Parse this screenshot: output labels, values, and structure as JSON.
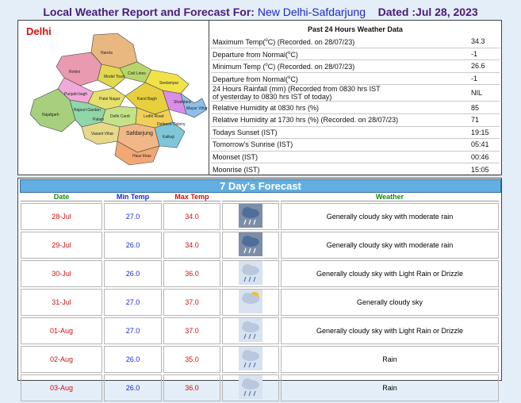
{
  "header": {
    "title_prefix": "Local Weather Report and Forecast For:",
    "station": "New Delhi-Safdarjung",
    "dated": "Dated :Jul 28, 2023"
  },
  "map": {
    "title": "Delhi",
    "labels": [
      "Narela",
      "Rohini",
      "Model Town",
      "Civil Lines",
      "Seelampur",
      "Shahdara",
      "Punjabi bagh",
      "Patel Nagar",
      "Karol Bagh",
      "Rajouri Garden",
      "Najafgarh",
      "Palam",
      "Delhi Cantt",
      "Safdarjung",
      "Lodhi Road",
      "Vasant Vihar",
      "Hauz khas",
      "Defence Colony",
      "Kalkaji",
      "Mayur Vihar"
    ]
  },
  "past": {
    "title": "Past 24 Hours Weather Data",
    "rows": [
      {
        "label": [
          "Maximum Temp(",
          "o",
          "C) (Recorded. on 28/07/23)"
        ],
        "value": "34.3"
      },
      {
        "label": [
          "Departure from Normal(",
          "o",
          "C)"
        ],
        "value": "-1"
      },
      {
        "label": [
          "Minimum Temp (",
          "o",
          "C) (Recorded. on 28/07/23)"
        ],
        "value": "26.6"
      },
      {
        "label": [
          "Departure from Normal(",
          "o",
          "C)"
        ],
        "value": "-1"
      },
      {
        "label": [
          "24 Hours Rainfall (mm) (Recorded from 0830 hrs IST\nof yesterday to 0830 hrs IST of today)"
        ],
        "value": "NIL"
      },
      {
        "label": [
          "Relative Humidity at 0830 hrs (%)"
        ],
        "value": "85"
      },
      {
        "label": [
          "Relative Humidity at 1730 hrs (%) (Recorded. on 28/07/23)"
        ],
        "value": "71"
      },
      {
        "label": [
          "Todays Sunset (IST)"
        ],
        "value": "19:15"
      },
      {
        "label": [
          "Tomorrow's Sunrise (IST)"
        ],
        "value": "05:41"
      },
      {
        "label": [
          "Moonset (IST)"
        ],
        "value": "00:46"
      },
      {
        "label": [
          "Moonrise (IST)"
        ],
        "value": "15:05"
      }
    ]
  },
  "forecast": {
    "title": "7 Day's Forecast",
    "columns": [
      "Date",
      "Min Temp",
      "Max Temp",
      "Weather"
    ],
    "rows": [
      {
        "date": "28-Jul",
        "min": "27.0",
        "max": "34.0",
        "weather": "Generally cloudy sky with moderate rain"
      },
      {
        "date": "29-Jul",
        "min": "26.0",
        "max": "34.0",
        "weather": "Generally cloudy sky with moderate rain"
      },
      {
        "date": "30-Jul",
        "min": "26.0",
        "max": "36.0",
        "weather": "Generally cloudy sky with Light Rain or Drizzle"
      },
      {
        "date": "31-Jul",
        "min": "27.0",
        "max": "37.0",
        "weather": "Generally cloudy sky"
      },
      {
        "date": "01-Aug",
        "min": "27.0",
        "max": "37.0",
        "weather": "Generally cloudy sky with Light Rain or Drizzle"
      },
      {
        "date": "02-Aug",
        "min": "26.0",
        "max": "35.0",
        "weather": "Rain"
      },
      {
        "date": "03-Aug",
        "min": "26.0",
        "max": "36.0",
        "weather": "Rain"
      }
    ]
  }
}
